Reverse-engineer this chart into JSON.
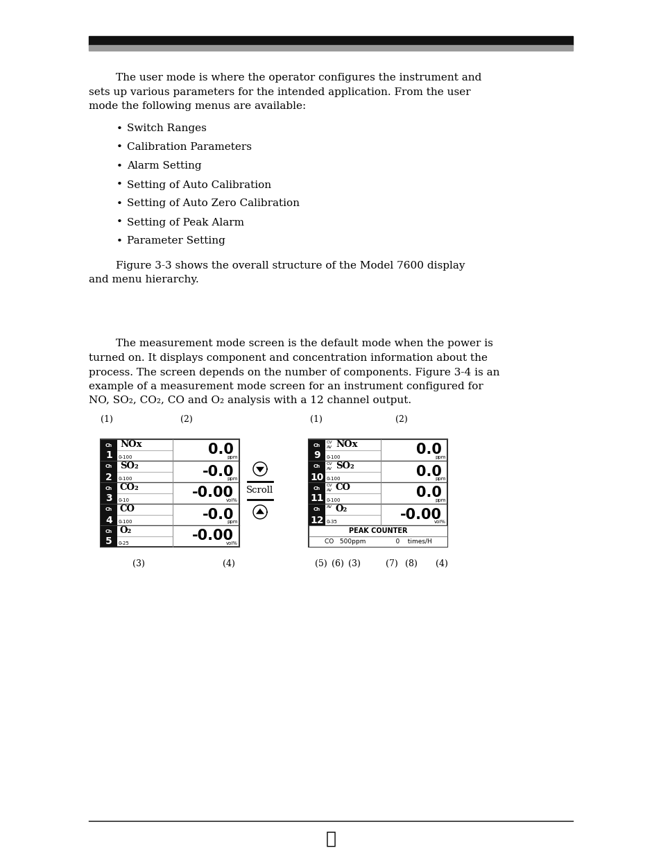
{
  "bg_color": "#ffffff",
  "header_bar_black": "#111111",
  "header_bar_gray": "#999999",
  "body_text": [
    "        The user mode is where the operator configures the instrument and",
    "sets up various parameters for the intended application. From the user",
    "mode the following menus are available:"
  ],
  "bullet_items": [
    "Switch Ranges",
    "Calibration Parameters",
    "Alarm Setting",
    "Setting of Auto Calibration",
    "Setting of Auto Zero Calibration",
    "Setting of Peak Alarm",
    "Parameter Setting"
  ],
  "figure_text_line1": "        Figure 3-3 shows the overall structure of the Model 7600 display",
  "figure_text_line2": "and menu hierarchy.",
  "meas_text": [
    "        The measurement mode screen is the default mode when the power is",
    "turned on. It displays component and concentration information about the",
    "process. The screen depends on the number of components. Figure 3-4 is an",
    "example of a measurement mode screen for an instrument configured for",
    "NO, SO₂, CO₂, CO and O₂ analysis with a 12 channel output."
  ],
  "left_channels": [
    {
      "ch_num": "1",
      "cv": null,
      "name": "NOx",
      "range": "0-100",
      "value": "0.0",
      "unit": "ppm"
    },
    {
      "ch_num": "2",
      "cv": null,
      "name": "SO₂",
      "range": "0-100",
      "value": "-0.0",
      "unit": "ppm"
    },
    {
      "ch_num": "3",
      "cv": null,
      "name": "CO₂",
      "range": "0-10",
      "value": "-0.00",
      "unit": "vol%"
    },
    {
      "ch_num": "4",
      "cv": null,
      "name": "CO",
      "range": "0-100",
      "value": "-0.0",
      "unit": "ppm"
    },
    {
      "ch_num": "5",
      "cv": null,
      "name": "O₂",
      "range": "0-25",
      "value": "-0.00",
      "unit": "vol%"
    }
  ],
  "right_channels": [
    {
      "ch_num": "9",
      "cv": "CV\nAV",
      "name": "NOx",
      "range": "0-100",
      "value": "0.0",
      "unit": "ppm"
    },
    {
      "ch_num": "10",
      "cv": "CV\nAV",
      "name": "SO₂",
      "range": "0-100",
      "value": "0.0",
      "unit": "ppm"
    },
    {
      "ch_num": "11",
      "cv": "CV\nAV",
      "name": "CO",
      "range": "0-100",
      "value": "0.0",
      "unit": "ppm"
    },
    {
      "ch_num": "12",
      "cv": "AV",
      "name": "O₂",
      "range": "0-35",
      "value": "-0.00",
      "unit": "vol%"
    }
  ],
  "peak_counter_line1": "PEAK COUNTER",
  "peak_counter_line2": "CO   500ppm               0    times/H",
  "scroll_label": "Scroll",
  "footer_symbol": "✸"
}
